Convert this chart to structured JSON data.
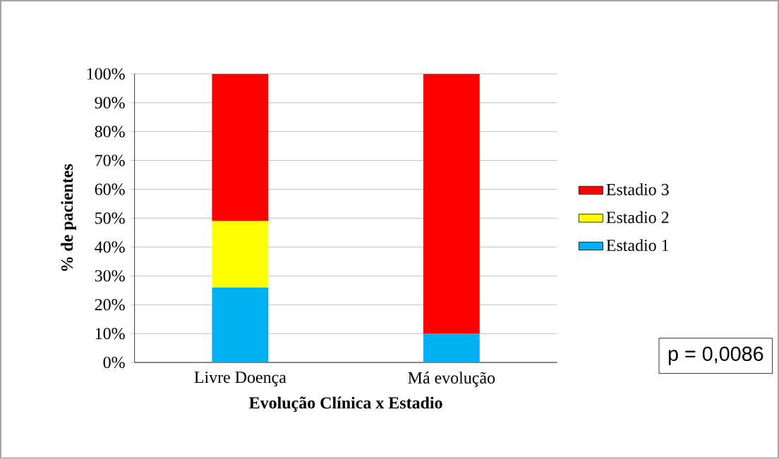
{
  "chart_data": {
    "type": "bar",
    "stacked": true,
    "xlabel": "Evolução Clínica x Estadio",
    "ylabel": "% de pacientes",
    "categories": [
      "Livre Doença",
      "Má evolução"
    ],
    "series": [
      {
        "name": "Estadio 1",
        "color": "#00b0f0",
        "values": [
          26,
          10
        ]
      },
      {
        "name": "Estadio 2",
        "color": "#ffff00",
        "values": [
          23,
          0
        ]
      },
      {
        "name": "Estadio 3",
        "color": "#ff0000",
        "values": [
          51,
          90
        ]
      }
    ],
    "ylim": [
      0,
      100
    ],
    "yticks": [
      {
        "value": 0,
        "label": "0%"
      },
      {
        "value": 10,
        "label": "10%"
      },
      {
        "value": 20,
        "label": "20%"
      },
      {
        "value": 30,
        "label": "30%"
      },
      {
        "value": 40,
        "label": "40%"
      },
      {
        "value": 50,
        "label": "50%"
      },
      {
        "value": 60,
        "label": "60%"
      },
      {
        "value": 70,
        "label": "70%"
      },
      {
        "value": 80,
        "label": "80%"
      },
      {
        "value": 90,
        "label": "90%"
      },
      {
        "value": 100,
        "label": "100%"
      }
    ],
    "grid": "y",
    "legend": "right",
    "annotations": [
      "p = 0,0086"
    ]
  }
}
